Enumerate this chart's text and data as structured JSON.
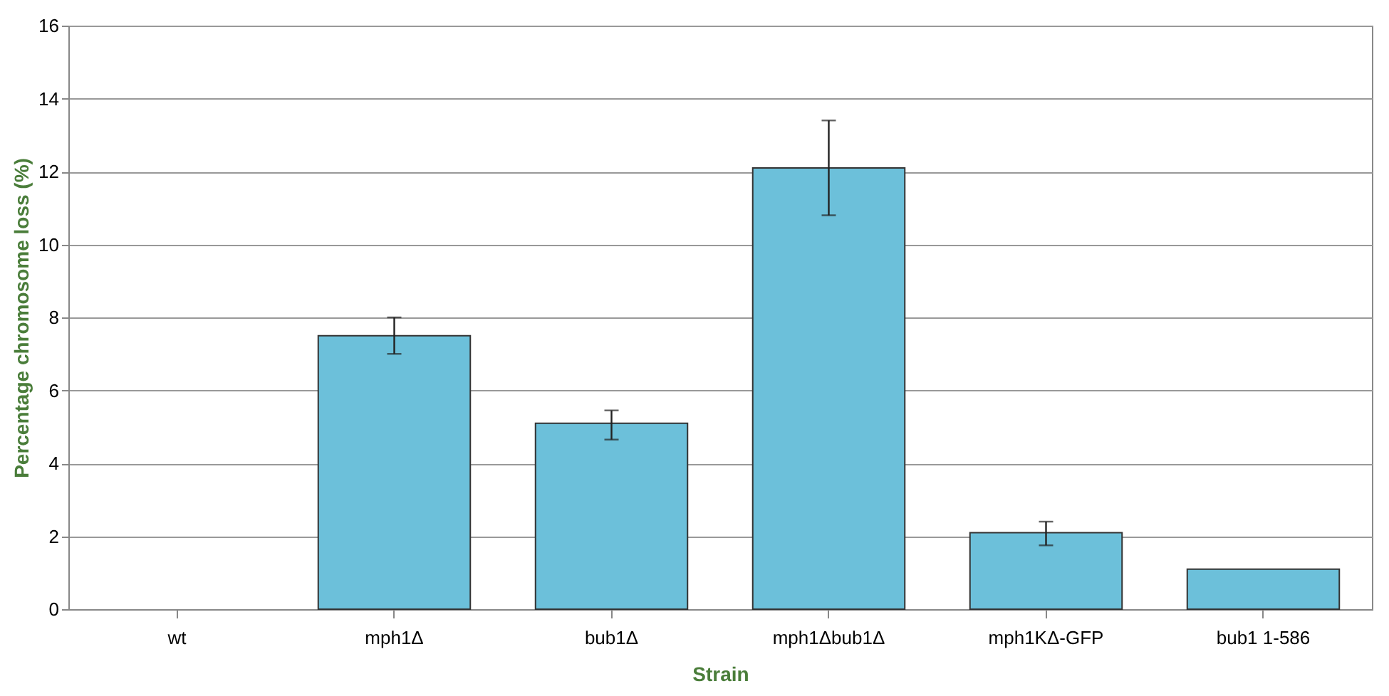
{
  "chart_data": {
    "type": "bar",
    "categories": [
      "wt",
      "mph1Δ",
      "bub1Δ",
      "mph1Δbub1Δ",
      "mph1KΔ-GFP",
      "bub1 1-586"
    ],
    "values": [
      0,
      7.5,
      5.1,
      12.1,
      2.1,
      1.1
    ],
    "errors": [
      null,
      [
        7.0,
        8.0
      ],
      [
        4.65,
        5.45
      ],
      [
        10.8,
        13.4
      ],
      [
        1.75,
        2.4
      ],
      null
    ],
    "color": "#6cc0da",
    "xlabel": "Strain",
    "ylabel": "Percentage chromosome loss (%)",
    "ylim": [
      0,
      16
    ],
    "yticks": [
      0,
      2,
      4,
      6,
      8,
      10,
      12,
      14,
      16
    ],
    "grid": "y"
  }
}
